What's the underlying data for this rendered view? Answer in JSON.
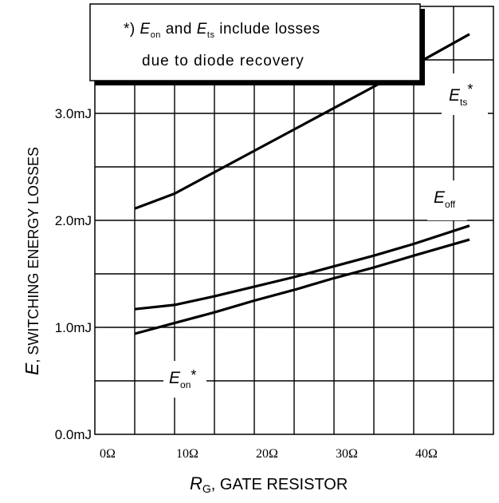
{
  "chart_data": {
    "type": "line",
    "xlabel_symbol": "R",
    "xlabel_sub": "G",
    "xlabel_text": ", GATE RESISTOR",
    "ylabel_symbol": "E",
    "ylabel_text": ", SWITCHING ENERGY LOSSES",
    "xlim": [
      0,
      50
    ],
    "ylim": [
      0,
      4.0
    ],
    "x_ticks": [
      {
        "value": 0,
        "label": "0Ω"
      },
      {
        "value": 10,
        "label": "10Ω"
      },
      {
        "value": 20,
        "label": "20Ω"
      },
      {
        "value": 30,
        "label": "30Ω"
      },
      {
        "value": 40,
        "label": "40Ω"
      }
    ],
    "y_ticks": [
      {
        "value": 0.0,
        "label": "0.0mJ"
      },
      {
        "value": 1.0,
        "label": "1.0mJ"
      },
      {
        "value": 2.0,
        "label": "2.0mJ"
      },
      {
        "value": 3.0,
        "label": "3.0mJ"
      }
    ],
    "grid": true,
    "series": [
      {
        "name": "E_ts*",
        "label_main": "E",
        "label_sub": "ts",
        "label_suffix": "*",
        "x": [
          5,
          10,
          15,
          20,
          25,
          30,
          35,
          40,
          47
        ],
        "y": [
          2.11,
          2.25,
          2.45,
          2.65,
          2.85,
          3.05,
          3.25,
          3.45,
          3.74
        ]
      },
      {
        "name": "E_off",
        "label_main": "E",
        "label_sub": "off",
        "label_suffix": "",
        "x": [
          5,
          10,
          15,
          20,
          25,
          30,
          35,
          40,
          47
        ],
        "y": [
          1.17,
          1.21,
          1.29,
          1.38,
          1.47,
          1.57,
          1.67,
          1.78,
          1.95
        ]
      },
      {
        "name": "E_on*",
        "label_main": "E",
        "label_sub": "on",
        "label_suffix": "*",
        "x": [
          5,
          10,
          15,
          20,
          25,
          30,
          35,
          40,
          47
        ],
        "y": [
          0.94,
          1.04,
          1.14,
          1.25,
          1.35,
          1.46,
          1.56,
          1.67,
          1.82
        ]
      }
    ],
    "annotation": {
      "line1_prefix": "*) ",
      "line1_e1": "E",
      "line1_e1_sub": "on",
      "line1_mid": " and ",
      "line1_e2": "E",
      "line1_e2_sub": "ts",
      "line1_suffix": " include losses",
      "line2": "due to diode recovery"
    }
  }
}
